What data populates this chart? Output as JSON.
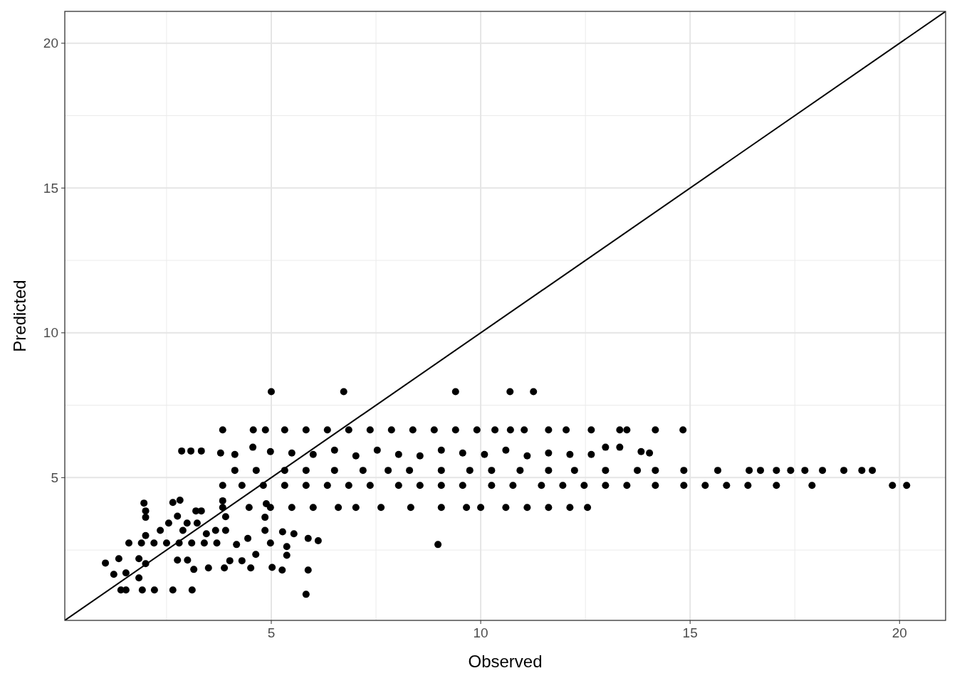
{
  "chart_data": {
    "type": "scatter",
    "xlabel": "Observed",
    "ylabel": "Predicted",
    "xlim": [
      0.07,
      21.1
    ],
    "ylim": [
      0.07,
      21.1
    ],
    "xticks": [
      5,
      10,
      15,
      20
    ],
    "yticks": [
      5,
      10,
      15,
      20
    ],
    "grid": true,
    "series": [
      {
        "marker": "circle",
        "color": "#000000",
        "x": [
          5.0,
          6.73,
          9.4,
          10.7,
          11.26,
          3.84,
          4.57,
          4.86,
          5.32,
          5.83,
          6.34,
          6.85,
          7.36,
          7.87,
          8.38,
          8.89,
          9.4,
          9.91,
          10.34,
          10.71,
          11.04,
          11.62,
          12.04,
          12.64,
          13.32,
          13.49,
          14.17,
          14.83,
          3.79,
          4.13,
          4.56,
          4.98,
          5.49,
          6.0,
          6.51,
          7.02,
          7.53,
          8.04,
          8.55,
          9.06,
          9.57,
          10.09,
          10.6,
          11.11,
          11.62,
          12.13,
          12.64,
          12.98,
          13.32,
          13.83,
          14.03,
          2.86,
          3.08,
          3.33,
          4.13,
          4.64,
          5.32,
          5.83,
          6.51,
          7.19,
          7.79,
          8.3,
          9.06,
          9.74,
          10.26,
          10.94,
          11.62,
          12.24,
          12.98,
          13.74,
          14.17,
          14.85,
          15.66,
          16.41,
          16.68,
          17.06,
          17.4,
          17.74,
          18.16,
          18.67,
          19.1,
          19.35,
          3.84,
          4.3,
          4.81,
          5.32,
          5.83,
          6.34,
          6.85,
          7.36,
          8.04,
          8.55,
          9.06,
          9.57,
          10.26,
          10.77,
          11.45,
          11.96,
          12.47,
          12.98,
          13.49,
          14.17,
          14.85,
          15.36,
          15.87,
          16.38,
          17.06,
          17.91,
          19.83,
          20.17,
          3.84,
          4.47,
          4.98,
          5.49,
          6.0,
          6.6,
          7.02,
          7.62,
          8.33,
          9.06,
          9.66,
          10.0,
          10.6,
          11.11,
          11.62,
          12.13,
          12.55,
          3.84,
          4.88,
          8.98,
          1.96,
          2.0,
          2.0,
          2.65,
          2.82,
          3.2,
          3.33,
          2.76,
          2.55,
          2.99,
          3.23,
          2.35,
          2.89,
          3.45,
          3.67,
          3.91,
          1.6,
          1.9,
          2.2,
          2.5,
          2.8,
          3.1,
          3.4,
          3.7,
          4.17,
          2.0,
          4.44,
          4.85,
          5.27,
          5.54,
          5.88,
          6.12,
          4.98,
          5.37,
          5.37,
          4.85,
          3.91,
          1.04,
          1.36,
          1.84,
          2.0,
          1.24,
          1.53,
          1.84,
          2.76,
          3.0,
          3.15,
          3.5,
          3.88,
          4.01,
          4.3,
          4.51,
          4.63,
          5.02,
          5.26,
          5.88,
          1.41,
          1.53,
          1.92,
          2.21,
          2.65,
          3.11,
          5.83
        ],
        "values": [
          7.97,
          7.97,
          7.97,
          7.97,
          7.97,
          6.65,
          6.65,
          6.65,
          6.65,
          6.65,
          6.65,
          6.65,
          6.65,
          6.65,
          6.65,
          6.65,
          6.65,
          6.65,
          6.65,
          6.65,
          6.65,
          6.65,
          6.65,
          6.65,
          6.65,
          6.65,
          6.65,
          6.65,
          5.85,
          5.8,
          6.05,
          5.9,
          5.85,
          5.8,
          5.95,
          5.75,
          5.95,
          5.8,
          5.75,
          5.95,
          5.85,
          5.8,
          5.95,
          5.75,
          5.85,
          5.8,
          5.8,
          6.05,
          6.05,
          5.9,
          5.85,
          5.92,
          5.92,
          5.92,
          5.25,
          5.25,
          5.25,
          5.25,
          5.25,
          5.25,
          5.25,
          5.25,
          5.25,
          5.25,
          5.25,
          5.25,
          5.25,
          5.25,
          5.25,
          5.25,
          5.25,
          5.25,
          5.25,
          5.25,
          5.25,
          5.25,
          5.25,
          5.25,
          5.25,
          5.25,
          5.25,
          5.25,
          4.73,
          4.73,
          4.73,
          4.73,
          4.73,
          4.73,
          4.73,
          4.73,
          4.73,
          4.73,
          4.73,
          4.73,
          4.73,
          4.73,
          4.73,
          4.73,
          4.73,
          4.73,
          4.73,
          4.73,
          4.73,
          4.73,
          4.73,
          4.73,
          4.73,
          4.73,
          4.73,
          4.73,
          3.97,
          3.97,
          3.97,
          3.97,
          3.97,
          3.97,
          3.97,
          3.97,
          3.97,
          3.97,
          3.97,
          3.97,
          3.97,
          3.97,
          3.97,
          3.97,
          3.97,
          4.2,
          4.1,
          2.69,
          4.12,
          3.85,
          3.63,
          4.14,
          4.22,
          3.85,
          3.85,
          3.67,
          3.43,
          3.43,
          3.43,
          3.18,
          3.18,
          3.06,
          3.18,
          3.18,
          2.74,
          2.74,
          2.74,
          2.74,
          2.74,
          2.74,
          2.74,
          2.74,
          2.69,
          3.0,
          2.9,
          3.18,
          3.13,
          3.06,
          2.9,
          2.82,
          2.74,
          2.62,
          2.32,
          3.63,
          3.65,
          2.05,
          2.2,
          2.2,
          2.03,
          1.66,
          1.71,
          1.54,
          2.15,
          2.15,
          1.83,
          1.88,
          1.88,
          2.13,
          2.13,
          1.88,
          2.35,
          1.9,
          1.81,
          1.81,
          1.12,
          1.12,
          1.12,
          1.12,
          1.12,
          1.12,
          0.97
        ]
      },
      {
        "type": "line",
        "color": "#000000",
        "x": [
          0.07,
          21.1
        ],
        "values": [
          0.07,
          21.1
        ]
      }
    ]
  }
}
